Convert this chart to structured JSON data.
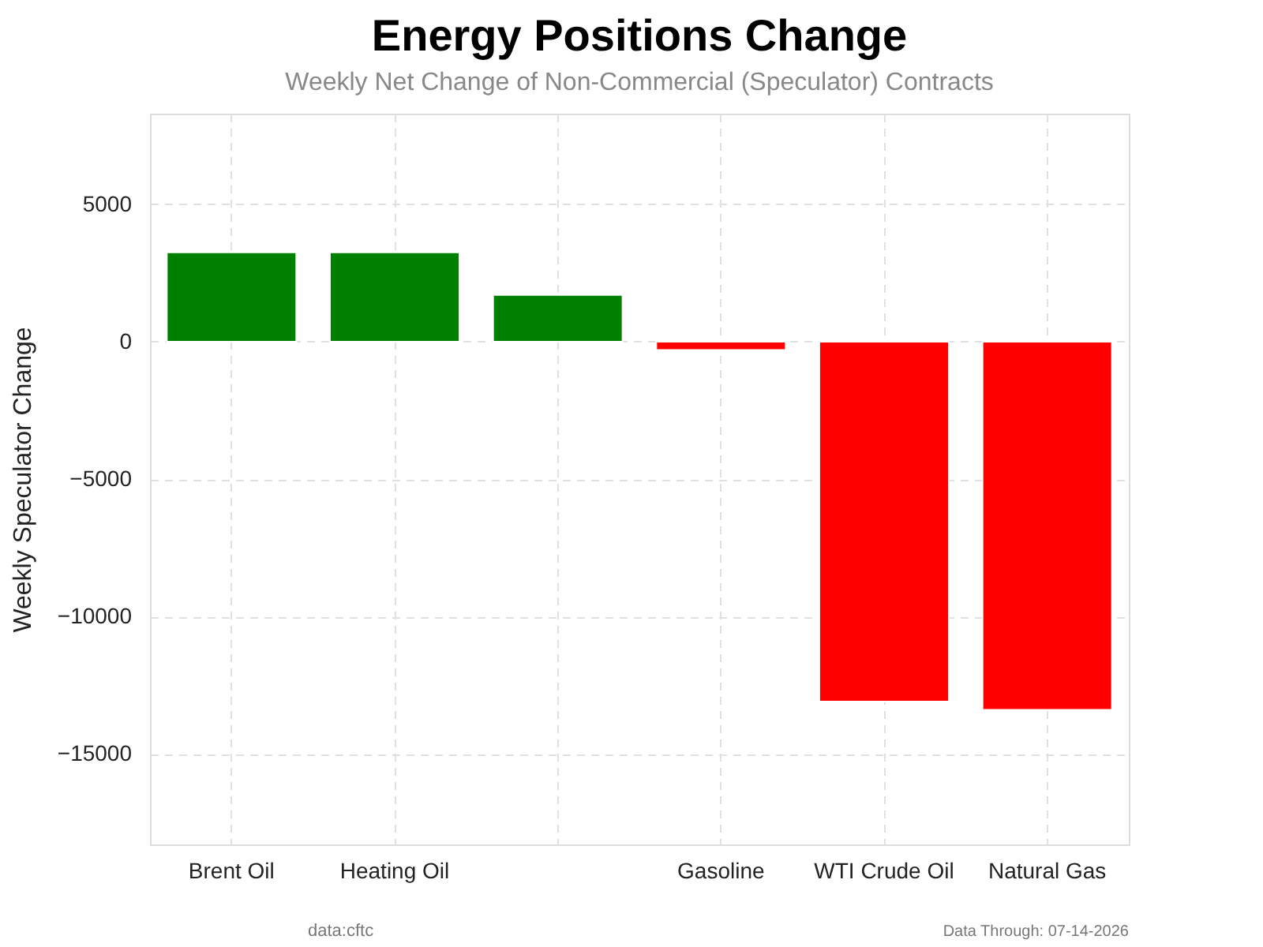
{
  "chart_data": {
    "type": "bar",
    "title": "Energy Positions Change",
    "subtitle": "Weekly Net Change of Non-Commercial (Speculator) Contracts",
    "ylabel": "Weekly Speculator Change",
    "categories": [
      "Brent Oil",
      "Heating Oil",
      null,
      "Gasoline",
      "WTI Crude Oil",
      "Natural Gas"
    ],
    "values": [
      3250,
      3250,
      1700,
      -300,
      -13100,
      -13400
    ],
    "colors": [
      "#008000",
      "#008000",
      "#008000",
      "#ff0000",
      "#ff0000",
      "#ff0000"
    ],
    "ylim": [
      -18300,
      8300
    ],
    "yticks": [
      {
        "value": -15000,
        "label": "−15000"
      },
      {
        "value": -10000,
        "label": "−10000"
      },
      {
        "value": -5000,
        "label": "−5000"
      },
      0,
      5000
    ],
    "grid": true,
    "annotations": [
      "data:cftc",
      "Data Through: 07-14-2026"
    ]
  }
}
